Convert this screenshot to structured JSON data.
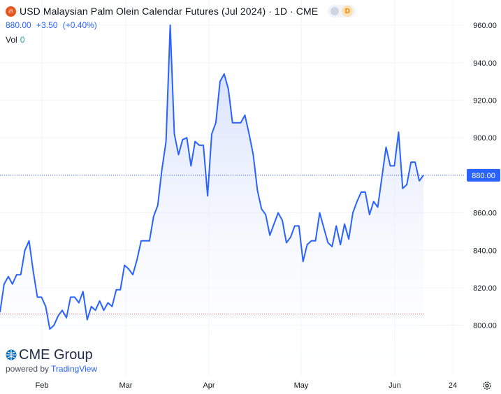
{
  "header": {
    "symbol_icon": "flame-icon",
    "title": "USD Malaysian Palm Olein Calendar Futures (Jul 2024) · 1D · CME",
    "interval_badge": "D",
    "price": "880.00",
    "change": "+3.50",
    "change_pct": "(+0.40%)",
    "vol_label": "Vol",
    "vol_value": "0"
  },
  "watermark": {
    "brand": "CME Group",
    "powered_prefix": "powered by",
    "powered_brand": "TradingView"
  },
  "settings_icon": "gear-icon",
  "colors": {
    "line": "#2962ff",
    "fill_top": "#c9d6fb",
    "fill_bottom": "#ffffff",
    "price_label_bg": "#2962ff",
    "prev_close_line": "#ef5350",
    "grid": "#f0f3fa",
    "axis_text": "#131722"
  },
  "chart_data": {
    "type": "area",
    "title": "USD Malaysian Palm Olein Calendar Futures (Jul 2024) · 1D · CME",
    "xlabel": "",
    "ylabel": "",
    "x_ticks": [
      "Feb",
      "Mar",
      "Apr",
      "May",
      "Jun",
      "24"
    ],
    "y_ticks": [
      "800.00",
      "820.00",
      "840.00",
      "860.00",
      "880.00",
      "900.00",
      "920.00",
      "940.00",
      "960.00"
    ],
    "ylim": [
      782,
      963
    ],
    "last_price_label": "880.00",
    "prev_close": 806,
    "grid": true,
    "legend": "none",
    "series": [
      {
        "values": [
          807,
          822,
          826,
          822,
          827,
          827,
          840,
          845,
          829,
          815,
          815,
          810,
          798,
          800,
          805,
          808,
          804,
          815,
          815,
          812,
          818,
          803,
          810,
          808,
          813,
          808,
          812,
          810,
          819,
          819,
          832,
          830,
          827,
          835,
          845,
          845,
          845,
          858,
          864,
          883,
          898,
          960,
          902,
          891,
          899,
          900,
          885,
          898,
          896,
          896,
          869,
          902,
          908,
          930,
          934,
          926,
          908,
          908,
          908,
          912,
          902,
          891,
          872,
          862,
          859,
          848,
          854,
          860,
          856,
          844,
          847,
          853,
          853,
          834,
          843,
          845,
          845,
          860,
          852,
          844,
          842,
          853,
          843,
          854,
          846,
          860,
          866,
          871,
          871,
          859,
          866,
          863,
          879,
          895,
          885,
          885,
          903,
          873,
          875,
          887,
          887,
          877,
          880
        ]
      }
    ]
  }
}
